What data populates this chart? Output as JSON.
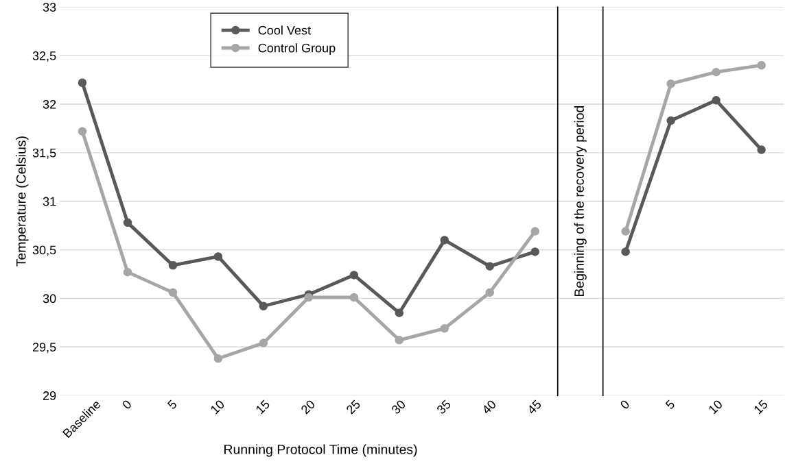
{
  "chart_data": {
    "type": "line",
    "xlabel": "Running Protocol Time (minutes)",
    "ylabel": "Temperature (Celsius)",
    "categories": [
      "Baseline",
      "0",
      "5",
      "10",
      "15",
      "20",
      "25",
      "30",
      "35",
      "40",
      "45",
      null,
      "0",
      "5",
      "10",
      "15"
    ],
    "series": [
      {
        "name": "Cool Vest",
        "color": "#595959",
        "values": [
          32.22,
          30.78,
          30.34,
          30.43,
          29.92,
          30.04,
          30.24,
          29.85,
          30.6,
          30.33,
          30.48,
          null,
          30.48,
          31.83,
          32.04,
          31.53
        ]
      },
      {
        "name": "Control Group",
        "color": "#a6a6a6",
        "values": [
          31.72,
          30.27,
          30.06,
          29.38,
          29.54,
          30.01,
          30.01,
          29.57,
          29.69,
          30.06,
          30.69,
          null,
          30.69,
          32.21,
          32.33,
          32.4
        ]
      }
    ],
    "ylim": [
      29,
      33
    ],
    "yticks": [
      29,
      {
        "value": 29.5,
        "label": "29,5"
      },
      30,
      {
        "value": 30.5,
        "label": "30,5"
      },
      31,
      {
        "value": 31.5,
        "label": "31,5"
      },
      32,
      {
        "value": 32.5,
        "label": "32,5"
      },
      33
    ],
    "annotations": [
      "Beginning of the recovery period"
    ],
    "grid": "y",
    "legend": "top left",
    "marker": "circle",
    "line_style": "solid"
  }
}
